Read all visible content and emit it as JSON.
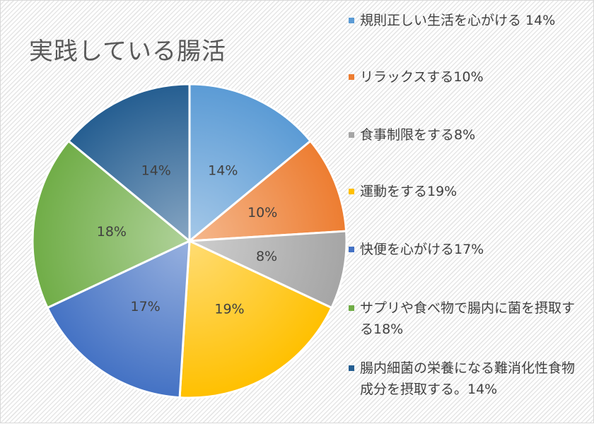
{
  "chart_data": {
    "type": "pie",
    "title": "実践している腸活",
    "start_angle": "12 o'clock, clockwise",
    "legend_position": "right",
    "slices": [
      {
        "label": "規則正しい生活を心がける",
        "value": 14,
        "data_label": "14%",
        "legend": "規則正しい生活を心がける 14%",
        "color": "#5b9bd5"
      },
      {
        "label": "リラックスする",
        "value": 10,
        "data_label": "10%",
        "legend": "リラックスする10%",
        "color": "#ed7d31"
      },
      {
        "label": "食事制限をする",
        "value": 8,
        "data_label": "8%",
        "legend": "食事制限をする8%",
        "color": "#a5a5a5"
      },
      {
        "label": "運動をする",
        "value": 19,
        "data_label": "19%",
        "legend": "運動をする19%",
        "color": "#ffc000"
      },
      {
        "label": "快便を心がける",
        "value": 17,
        "data_label": "17%",
        "legend": "快便を心がける17%",
        "color": "#4472c4"
      },
      {
        "label": "サプリや食べ物で腸内に菌を摂取する",
        "value": 18,
        "data_label": "18%",
        "legend": "サプリや食べ物で腸内に菌を摂取する18%",
        "color": "#70ad47"
      },
      {
        "label": "腸内細菌の栄養になる難消化性食物成分を摂取する。",
        "value": 14,
        "data_label": "14%",
        "legend": "腸内細菌の栄養になる難消化性食物成分を摂取する。14%",
        "color": "#255e91"
      }
    ]
  }
}
